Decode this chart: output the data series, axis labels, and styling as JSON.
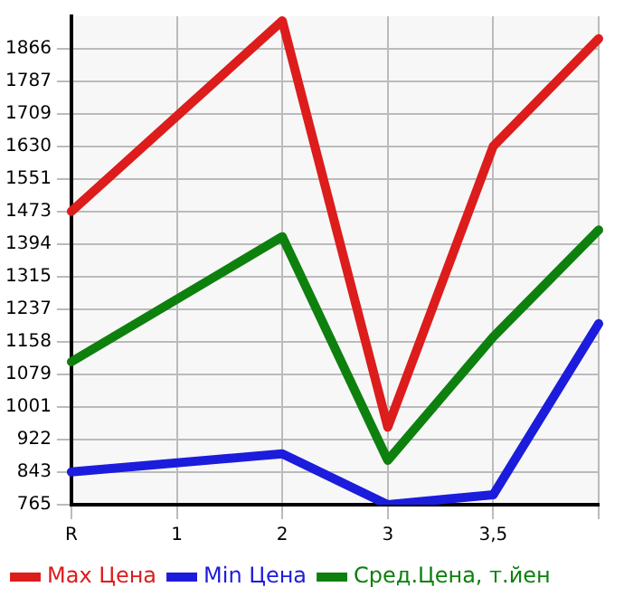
{
  "chart_data": {
    "type": "line",
    "categories": [
      "R",
      "1",
      "2",
      "3",
      "3,5",
      null
    ],
    "series": [
      {
        "name": "Max Цена",
        "color": "#dd1c1c",
        "values": [
          1473,
          null,
          1933,
          952,
          1630,
          1890
        ]
      },
      {
        "name": "Min Цена",
        "color": "#1c1cdd",
        "values": [
          844,
          null,
          888,
          765,
          789,
          1202
        ]
      },
      {
        "name": "Сред.Цена, т.йен",
        "color": "#0e800e",
        "values": [
          1110,
          null,
          1412,
          872,
          1170,
          1428
        ]
      }
    ],
    "ylim": [
      765,
      1944
    ],
    "yticks": [
      765,
      843,
      922,
      1001,
      1079,
      1158,
      1237,
      1315,
      1394,
      1473,
      1551,
      1630,
      1709,
      1787,
      1866
    ],
    "grid": true,
    "legend": "bottom",
    "marker": "none",
    "line_style": "solid"
  }
}
